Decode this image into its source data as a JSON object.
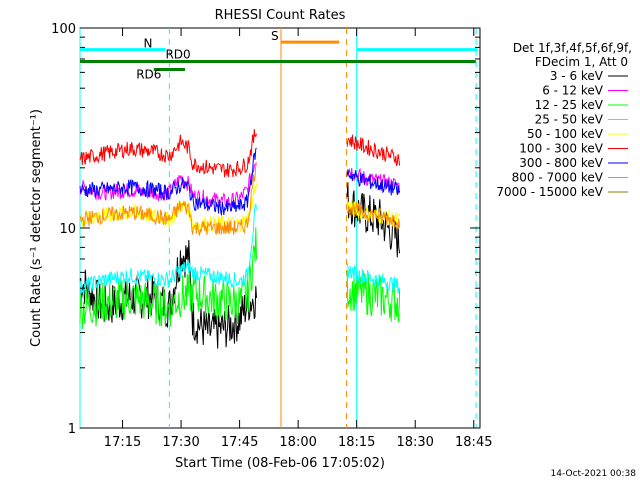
{
  "chart_data": {
    "type": "line",
    "title": "RHESSI Count Rates",
    "xlabel": "Start Time (08-Feb-06 17:05:02)",
    "ylabel": "Count Rate (s⁻¹ detector segment⁻¹)",
    "yscale": "log",
    "ylim": [
      1,
      100
    ],
    "xlim_minutes": [
      -0.9,
      101.6
    ],
    "xticks": [
      {
        "label": "17:15",
        "minutes": 10
      },
      {
        "label": "17:30",
        "minutes": 25
      },
      {
        "label": "17:45",
        "minutes": 40
      },
      {
        "label": "18:00",
        "minutes": 55
      },
      {
        "label": "18:15",
        "minutes": 70
      },
      {
        "label": "18:30",
        "minutes": 85
      },
      {
        "label": "18:45",
        "minutes": 100
      }
    ],
    "yticks": [
      {
        "label": "1",
        "value": 1
      },
      {
        "label": "10",
        "value": 10
      },
      {
        "label": "100",
        "value": 100
      }
    ],
    "legend_header": [
      "Det 1f,3f,4f,5f,6f,9f,",
      "FDecim 1, Att 0"
    ],
    "legend_position": "right",
    "data_gaps_minutes": [
      [
        44.5,
        67.4
      ]
    ],
    "series": [
      {
        "name": "3 - 6 keV",
        "color": "#000000",
        "values_minutes": [
          -0.9,
          5,
          12,
          18,
          22,
          25,
          27,
          28,
          32,
          37,
          40,
          42,
          44,
          67.4,
          71,
          76,
          80,
          81
        ],
        "values": [
          5.5,
          4.0,
          4.5,
          4.5,
          4.0,
          7.5,
          7.0,
          3.5,
          3.0,
          3.2,
          3.5,
          4.2,
          4.5,
          14,
          12,
          11,
          9,
          8.5
        ]
      },
      {
        "name": "6 - 12 keV",
        "color": "#ff00ff",
        "values_minutes": [
          -0.9,
          5,
          12,
          18,
          22,
          25,
          27,
          28,
          32,
          37,
          40,
          42,
          44,
          67.4,
          71,
          76,
          80,
          81
        ],
        "values": [
          16,
          15,
          15.5,
          15,
          15,
          18,
          16.5,
          14.5,
          14,
          13.5,
          14,
          15.5,
          22,
          20,
          18,
          17,
          16.5,
          16
        ]
      },
      {
        "name": "12 - 25 keV",
        "color": "#00ff00",
        "values_minutes": [
          -0.9,
          5,
          12,
          18,
          22,
          25,
          27,
          28,
          32,
          37,
          40,
          42,
          44,
          67.4,
          71,
          76,
          80,
          81
        ],
        "values": [
          4.0,
          4.2,
          4.5,
          4.2,
          4.0,
          4.6,
          4.6,
          4.8,
          4.5,
          4.3,
          4.2,
          4.6,
          8,
          5.0,
          4.8,
          4.5,
          4.3,
          4.2
        ]
      },
      {
        "name": "25 - 50 keV",
        "color": "#00ffff",
        "values_minutes": [
          -0.9,
          5,
          12,
          18,
          22,
          25,
          27,
          28,
          32,
          37,
          40,
          42,
          44,
          67.4,
          71,
          76,
          80,
          81
        ],
        "values": [
          5.0,
          5.5,
          5.8,
          5.6,
          5.5,
          6.2,
          6.4,
          6.0,
          5.8,
          5.6,
          5.4,
          5.8,
          12,
          6.2,
          5.8,
          5.5,
          5.2,
          5.1
        ]
      },
      {
        "name": "50 - 100 keV",
        "color": "#ffff00",
        "values_minutes": [
          -0.9,
          5,
          12,
          18,
          22,
          25,
          27,
          28,
          32,
          37,
          40,
          42,
          44,
          67.4,
          71,
          76,
          80,
          81
        ],
        "values": [
          11,
          11.5,
          12,
          11.5,
          11,
          13,
          12.5,
          10.5,
          10.5,
          10.5,
          10.5,
          11,
          16,
          13,
          12,
          11.5,
          11,
          11
        ]
      },
      {
        "name": "100 - 300 keV",
        "color": "#ff0000",
        "values_minutes": [
          -0.9,
          5,
          12,
          18,
          22,
          25,
          27,
          28,
          32,
          37,
          40,
          42,
          44,
          67.4,
          71,
          76,
          80,
          81
        ],
        "values": [
          22,
          23.5,
          25,
          24,
          23,
          27,
          25,
          21,
          20,
          19.5,
          20,
          21,
          30,
          28,
          26,
          24,
          22.5,
          22
        ]
      },
      {
        "name": "300 - 800 keV",
        "color": "#0000ff",
        "values_minutes": [
          -0.9,
          5,
          12,
          18,
          22,
          25,
          27,
          28,
          32,
          37,
          40,
          42,
          44,
          67.4,
          71,
          76,
          80,
          81
        ],
        "values": [
          15.5,
          15.5,
          16,
          15.5,
          15,
          16.5,
          16,
          13.5,
          13,
          12.5,
          12.8,
          13.5,
          24,
          19,
          17.5,
          16.5,
          15.5,
          15
        ]
      },
      {
        "name": "800 - 7000 keV",
        "color": "#ff8c00",
        "values_minutes": [
          -0.9,
          5,
          12,
          18,
          22,
          25,
          27,
          28,
          32,
          37,
          40,
          42,
          44,
          67.4,
          71,
          76,
          80,
          81
        ],
        "values": [
          11,
          11.5,
          12,
          11.5,
          11,
          13,
          12.5,
          10,
          10,
          10,
          10,
          10.5,
          20,
          13,
          12,
          11.5,
          11,
          10.5
        ]
      },
      {
        "name": "7000 - 15000 keV",
        "color": "#808000",
        "values_minutes": [],
        "values": []
      }
    ],
    "annotations": [
      {
        "text": "N",
        "color": "#00ffff",
        "minutes_from": -0.9,
        "minutes_to": 21,
        "value": 78
      },
      {
        "text": "N",
        "color": "#00ffff",
        "minutes_from": 70,
        "minutes_to": 101,
        "value": 78
      },
      {
        "text": "S",
        "color": "#ff8c00",
        "minutes_from": 50.6,
        "minutes_to": 65.5,
        "value": 85
      },
      {
        "text": "RD0",
        "color": "#008000",
        "minutes_from": -0.9,
        "minutes_to": 100.5,
        "value": 68
      },
      {
        "text": "RD6",
        "color": "#008000",
        "minutes_from": 18,
        "minutes_to": 26,
        "value": 62
      }
    ],
    "vertical_lines": [
      {
        "minutes": -0.9,
        "color": "#00ffff",
        "style": "solid"
      },
      {
        "minutes": 22,
        "color": "#00ffff",
        "style": "dashed"
      },
      {
        "minutes": 50.6,
        "color": "#ff8c00",
        "style": "solid"
      },
      {
        "minutes": 67.4,
        "color": "#ff8c00",
        "style": "dashed"
      },
      {
        "minutes": 70,
        "color": "#00ffff",
        "style": "solid"
      },
      {
        "minutes": 100.6,
        "color": "#00ffff",
        "style": "dashed"
      }
    ]
  },
  "footer_timestamp": "14-Oct-2021 00:38"
}
